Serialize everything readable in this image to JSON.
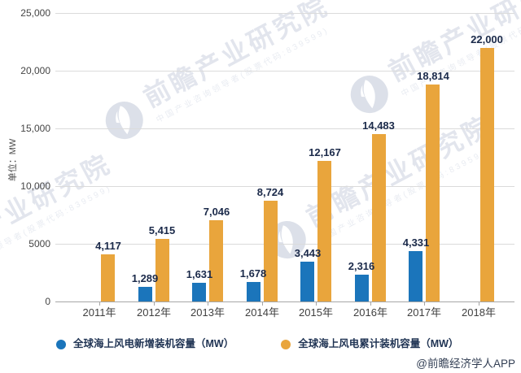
{
  "chart_data": {
    "type": "bar",
    "title": "",
    "unit_label": "单位：MW",
    "categories": [
      "2011年",
      "2012年",
      "2013年",
      "2014年",
      "2015年",
      "2016年",
      "2017年",
      "2018年"
    ],
    "series": [
      {
        "key": "new-capacity",
        "name": "全球海上风电新增装机容量（MW）",
        "color": "#1B75BB",
        "values": [
          null,
          1289,
          1631,
          1678,
          3443,
          2316,
          4331,
          null
        ],
        "labels": [
          null,
          "1,289",
          "1,631",
          "1,678",
          "3,443",
          "2,316",
          "4,331",
          null
        ]
      },
      {
        "key": "cumulative-capacity",
        "name": "全球海上风电累计装机容量（MW）",
        "color": "#E9A53C",
        "values": [
          4117,
          5415,
          7046,
          8724,
          12167,
          14483,
          18814,
          22000
        ],
        "labels": [
          "4,117",
          "5,415",
          "7,046",
          "8,724",
          "12,167",
          "14,483",
          "18,814",
          "22,000"
        ]
      }
    ],
    "y_ticks": [
      {
        "value": 0,
        "label": "0"
      },
      {
        "value": 5000,
        "label": "5000"
      },
      {
        "value": 10000,
        "label": "10,000"
      },
      {
        "value": 15000,
        "label": "15,000"
      },
      {
        "value": 20000,
        "label": "20,000"
      },
      {
        "value": 25000,
        "label": "25,000"
      }
    ],
    "ylim": [
      0,
      25000
    ],
    "grid": true,
    "legend_position": "bottom"
  },
  "watermark": {
    "big_text": "前瞻产业研究院",
    "small_text": "中国产业咨询领导者(股票代码:839599)"
  },
  "attribution": "@前瞻经济学人APP"
}
